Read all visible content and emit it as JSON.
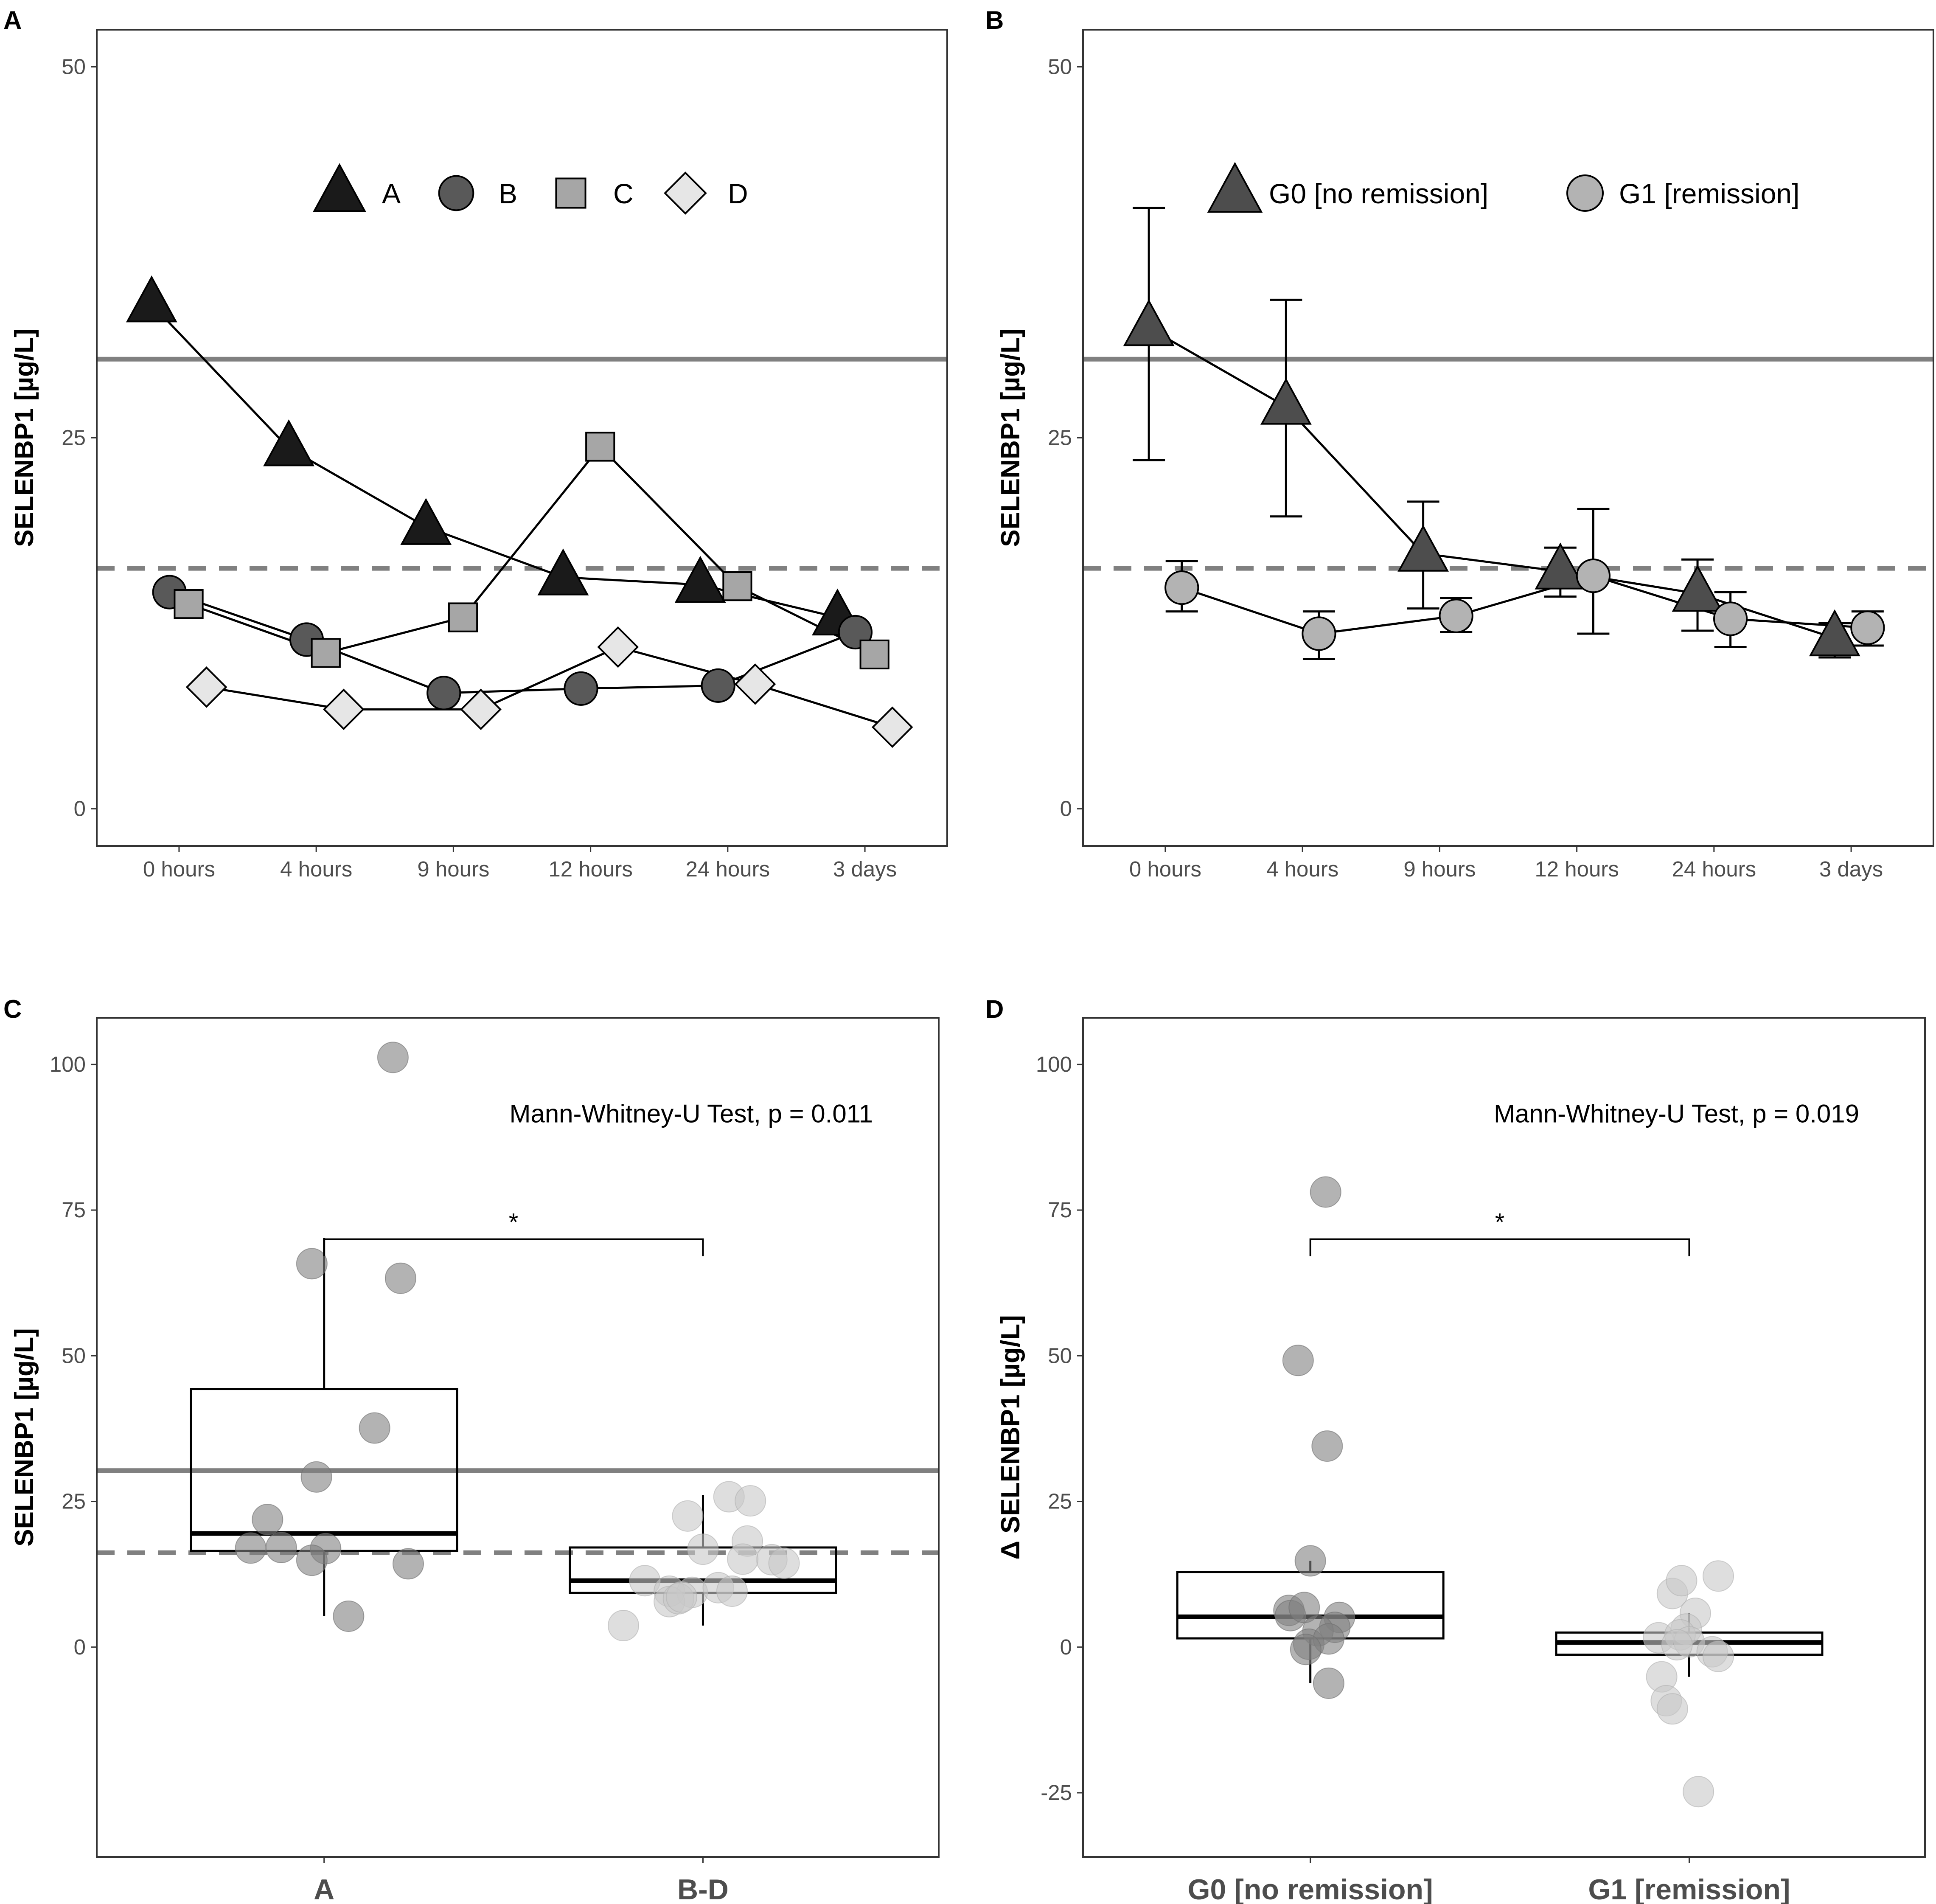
{
  "colors": {
    "ref_line": "#808080",
    "dark_triangle": "#1a1a1a",
    "g0_triangle": "#4d4d4d",
    "circle_b": "#595959",
    "square_c": "#a6a6a6",
    "diamond_d": "#e6e6e6",
    "g1_circle": "#b3b3b3",
    "jitter_dark": "#808080",
    "jitter_light": "#c8c8c8"
  },
  "chart_data": [
    {
      "panel": "A",
      "type": "line",
      "ylabel": "SELENBP1 [µg/L]",
      "ylim": [
        -2.5,
        52.5
      ],
      "yticks": [
        0,
        25,
        50
      ],
      "categories": [
        "0 hours",
        "4 hours",
        "9 hours",
        "12 hours",
        "24 hours",
        "3 days"
      ],
      "reference_lines": [
        {
          "y": 30.3,
          "style": "solid"
        },
        {
          "y": 16.2,
          "style": "dashed"
        }
      ],
      "legend": [
        "A",
        "B",
        "C",
        "D"
      ],
      "series": [
        {
          "name": "A",
          "marker": "triangle",
          "offset": -0.2,
          "values": [
            34.0,
            24.3,
            19.0,
            15.6,
            15.1,
            12.9
          ]
        },
        {
          "name": "B",
          "marker": "circle",
          "offset": -0.07,
          "values": [
            14.6,
            11.4,
            7.8,
            8.1,
            8.3,
            11.9
          ]
        },
        {
          "name": "C",
          "marker": "square",
          "offset": 0.07,
          "values": [
            13.8,
            10.5,
            12.9,
            24.4,
            15.0,
            10.4
          ]
        },
        {
          "name": "D",
          "marker": "diamond",
          "offset": 0.2,
          "values": [
            8.2,
            6.7,
            6.7,
            10.9,
            8.4,
            5.5
          ]
        }
      ]
    },
    {
      "panel": "B",
      "type": "line",
      "ylabel": "SELENBP1 [µg/L]",
      "ylim": [
        -2.5,
        52.5
      ],
      "yticks": [
        0,
        25,
        50
      ],
      "categories": [
        "0 hours",
        "4 hours",
        "9 hours",
        "12 hours",
        "24 hours",
        "3 days"
      ],
      "reference_lines": [
        {
          "y": 30.3,
          "style": "solid"
        },
        {
          "y": 16.2,
          "style": "dashed"
        }
      ],
      "legend": [
        "G0 [no remission]",
        "G1 [remission]"
      ],
      "series": [
        {
          "name": "G0 [no remission]",
          "marker": "triangle",
          "offset": -0.12,
          "values": [
            32.4,
            27.1,
            17.2,
            16.0,
            14.5,
            11.5
          ],
          "err_low": [
            23.5,
            19.7,
            13.5,
            14.3,
            12.0,
            10.2
          ],
          "err_high": [
            40.5,
            34.3,
            20.7,
            17.6,
            16.8,
            12.5
          ]
        },
        {
          "name": "G1 [remission]",
          "marker": "circle",
          "offset": 0.12,
          "values": [
            14.9,
            11.8,
            13.0,
            15.7,
            12.8,
            12.2
          ],
          "err_low": [
            13.3,
            10.1,
            11.9,
            11.8,
            10.9,
            11.0
          ],
          "err_high": [
            16.7,
            13.3,
            14.2,
            20.2,
            14.6,
            13.3
          ]
        }
      ]
    },
    {
      "panel": "C",
      "type": "box",
      "ylabel": "SELENBP1 [µg/L]",
      "ylim": [
        -36,
        108
      ],
      "yticks": [
        0,
        25,
        50,
        75,
        100
      ],
      "categories": [
        "A",
        "B-D"
      ],
      "reference_lines": [
        {
          "y": 30.3,
          "style": "solid"
        },
        {
          "y": 16.2,
          "style": "dashed"
        }
      ],
      "annotation": "Mann-Whitney-U Test, p = 0.011",
      "significance": "*",
      "boxes": [
        {
          "category": "A",
          "q1": 16.5,
          "median": 19.5,
          "q3": 44.3,
          "whisker_low": 5.3,
          "whisker_high": 70.2,
          "points": [
            [
              0.45,
              101.2
            ],
            [
              -0.08,
              65.8
            ],
            [
              0.5,
              63.3
            ],
            [
              0.33,
              37.6
            ],
            [
              -0.05,
              29.2
            ],
            [
              -0.37,
              21.9
            ],
            [
              -0.48,
              17.0
            ],
            [
              -0.28,
              17.1
            ],
            [
              0.01,
              16.9
            ],
            [
              -0.08,
              14.9
            ],
            [
              0.55,
              14.3
            ],
            [
              0.16,
              5.3
            ]
          ]
        },
        {
          "category": "B-D",
          "q1": 9.3,
          "median": 11.4,
          "q3": 17.1,
          "whisker_low": 3.7,
          "whisker_high": 26.1,
          "points": [
            [
              -0.1,
              22.5
            ],
            [
              0.17,
              25.8
            ],
            [
              0.31,
              25.1
            ],
            [
              0.0,
              16.8
            ],
            [
              0.29,
              18.2
            ],
            [
              0.45,
              15.0
            ],
            [
              0.53,
              14.4
            ],
            [
              0.26,
              15.1
            ],
            [
              -0.38,
              11.4
            ],
            [
              -0.22,
              9.6
            ],
            [
              -0.07,
              9.4
            ],
            [
              -0.22,
              7.8
            ],
            [
              -0.16,
              8.3
            ],
            [
              0.1,
              10.2
            ],
            [
              0.19,
              9.6
            ],
            [
              -0.52,
              3.7
            ],
            [
              -0.14,
              8.6
            ]
          ]
        }
      ]
    },
    {
      "panel": "D",
      "type": "box",
      "ylabel": "Δ SELENBP1 [µg/L]",
      "ylim": [
        -36,
        108
      ],
      "yticks": [
        -25,
        0,
        25,
        50,
        75,
        100
      ],
      "categories": [
        "G0 [no remission]",
        "G1 [remission]"
      ],
      "annotation": "Mann-Whitney-U Test, p = 0.019",
      "significance": "*",
      "boxes": [
        {
          "category": "G0 [no remission]",
          "q1": 1.5,
          "median": 5.2,
          "q3": 12.9,
          "whisker_low": -6.2,
          "whisker_high": 14.8,
          "points": [
            [
              0.1,
              78.1
            ],
            [
              -0.08,
              49.2
            ],
            [
              0.11,
              34.5
            ],
            [
              0.0,
              14.8
            ],
            [
              -0.14,
              6.3
            ],
            [
              -0.13,
              5.4
            ],
            [
              -0.04,
              6.8
            ],
            [
              0.19,
              5.1
            ],
            [
              0.16,
              3.4
            ],
            [
              0.05,
              2.8
            ],
            [
              -0.01,
              0.5
            ],
            [
              0.12,
              1.4
            ],
            [
              -0.03,
              -0.4
            ],
            [
              0.12,
              -6.2
            ]
          ]
        },
        {
          "category": "G1 [remission]",
          "q1": -1.3,
          "median": 0.8,
          "q3": 2.5,
          "whisker_low": -5.1,
          "whisker_high": 5.8,
          "points": [
            [
              -0.11,
              9.2
            ],
            [
              -0.05,
              11.4
            ],
            [
              0.04,
              5.8
            ],
            [
              0.19,
              12.2
            ],
            [
              -0.2,
              1.6
            ],
            [
              -0.02,
              3.1
            ],
            [
              -0.06,
              2.1
            ],
            [
              0.0,
              0.9
            ],
            [
              -0.08,
              0.4
            ],
            [
              0.15,
              -0.8
            ],
            [
              0.19,
              -1.6
            ],
            [
              -0.18,
              -5.1
            ],
            [
              -0.15,
              -9.2
            ],
            [
              -0.11,
              -10.6
            ],
            [
              0.06,
              -24.8
            ]
          ]
        }
      ]
    }
  ]
}
